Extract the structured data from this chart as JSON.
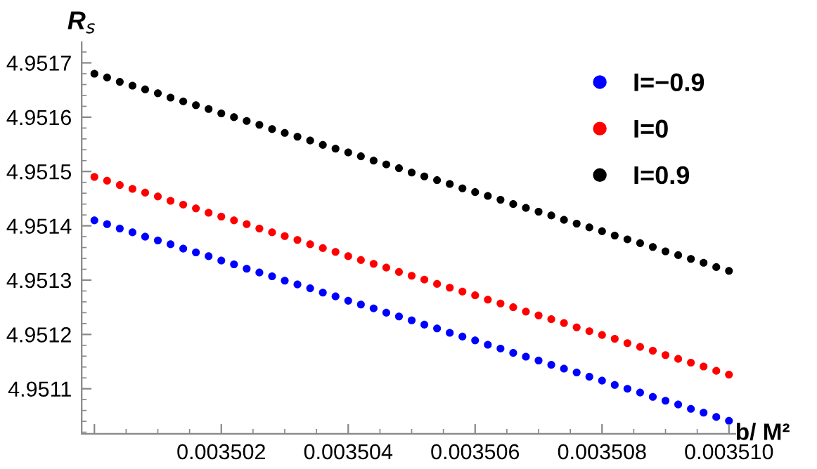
{
  "chart_data": {
    "type": "scatter",
    "xlabel": "b/ M²",
    "ylabel": "R$_{s}$",
    "x": [
      0.0035,
      0.0035002,
      0.0035004,
      0.0035006,
      0.0035008,
      0.003501,
      0.0035012,
      0.0035014,
      0.0035016,
      0.0035018,
      0.003502,
      0.0035022,
      0.0035024,
      0.0035026,
      0.0035028,
      0.003503,
      0.0035032,
      0.0035034,
      0.0035036,
      0.0035038,
      0.003504,
      0.0035042,
      0.0035044,
      0.0035046,
      0.0035048,
      0.003505,
      0.0035052,
      0.0035054,
      0.0035056,
      0.0035058,
      0.003506,
      0.0035062,
      0.0035064,
      0.0035066,
      0.0035068,
      0.003507,
      0.0035072,
      0.0035074,
      0.0035076,
      0.0035078,
      0.003508,
      0.0035082,
      0.0035084,
      0.0035086,
      0.0035088,
      0.003509,
      0.0035092,
      0.0035094,
      0.0035096,
      0.0035098,
      0.00351
    ],
    "series": [
      {
        "name": "I=−0.9",
        "color": "#0000ff",
        "values": [
          4.95141,
          4.951403,
          4.951395,
          4.951388,
          4.95138,
          4.951373,
          4.951366,
          4.951358,
          4.951351,
          4.951344,
          4.951336,
          4.951329,
          4.951321,
          4.951314,
          4.951307,
          4.951299,
          4.951292,
          4.951285,
          4.951277,
          4.95127,
          4.951262,
          4.951255,
          4.951248,
          4.95124,
          4.951233,
          4.951226,
          4.951218,
          4.951211,
          4.951203,
          4.951196,
          4.951189,
          4.951181,
          4.951174,
          4.951166,
          4.951159,
          4.951152,
          4.951144,
          4.951137,
          4.95113,
          4.951122,
          4.951115,
          4.951107,
          4.9511,
          4.951093,
          4.951085,
          4.951078,
          4.951071,
          4.951063,
          4.951056,
          4.951048,
          4.951041
        ]
      },
      {
        "name": "I=0",
        "color": "#ff0000",
        "values": [
          4.95149,
          4.951483,
          4.951475,
          4.951468,
          4.951461,
          4.951454,
          4.951446,
          4.951439,
          4.951432,
          4.951424,
          4.951417,
          4.95141,
          4.951403,
          4.951395,
          4.951388,
          4.951381,
          4.951374,
          4.951366,
          4.951359,
          4.951352,
          4.951344,
          4.951337,
          4.95133,
          4.951323,
          4.951315,
          4.951308,
          4.951301,
          4.951293,
          4.951286,
          4.951279,
          4.951272,
          4.951264,
          4.951257,
          4.95125,
          4.951242,
          4.951235,
          4.951228,
          4.951221,
          4.951213,
          4.951206,
          4.951199,
          4.951192,
          4.951184,
          4.951177,
          4.95117,
          4.951162,
          4.951155,
          4.951148,
          4.951141,
          4.951133,
          4.951126
        ]
      },
      {
        "name": "I=0.9",
        "color": "#000000",
        "values": [
          4.95168,
          4.951673,
          4.951665,
          4.951658,
          4.951651,
          4.951644,
          4.951636,
          4.951629,
          4.951622,
          4.951615,
          4.951607,
          4.9516,
          4.951593,
          4.951586,
          4.951578,
          4.951571,
          4.951564,
          4.951557,
          4.951549,
          4.951542,
          4.951535,
          4.951528,
          4.95152,
          4.951513,
          4.951506,
          4.951498,
          4.951491,
          4.951484,
          4.951477,
          4.951469,
          4.951462,
          4.951455,
          4.951448,
          4.95144,
          4.951433,
          4.951426,
          4.951419,
          4.951411,
          4.951404,
          4.951397,
          4.95139,
          4.951382,
          4.951375,
          4.951368,
          4.951361,
          4.951353,
          4.951346,
          4.951339,
          4.951332,
          4.951324,
          4.951317
        ]
      }
    ],
    "xlim": [
      0.0034998,
      0.0035101
    ],
    "ylim": [
      4.951017,
      4.951738
    ],
    "xticks": [
      {
        "value": 0.0035,
        "label": null
      },
      0.003502,
      0.003504,
      0.003506,
      0.003508,
      {
        "value": 0.00351,
        "label": "0.003510"
      }
    ],
    "yticks": [
      4.9511,
      4.9512,
      4.9513,
      4.9514,
      4.9515,
      4.9516,
      4.9517
    ],
    "grid": false,
    "legend": "top right",
    "marker": "circle"
  }
}
